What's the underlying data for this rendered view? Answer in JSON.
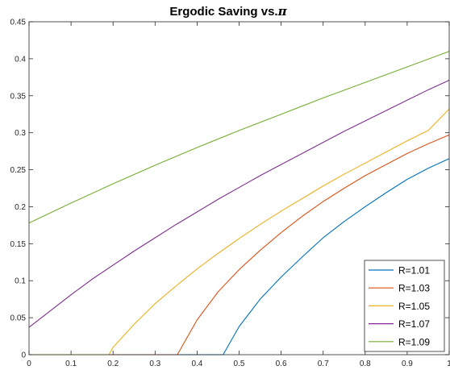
{
  "chart_data": {
    "type": "line",
    "title": "Ergodic Saving vs.",
    "title_symbol": "π",
    "xlabel": "",
    "ylabel": "",
    "xlim": [
      0,
      1
    ],
    "ylim": [
      0,
      0.45
    ],
    "x_ticks": [
      "0",
      "0.1",
      "0.2",
      "0.3",
      "0.4",
      "0.5",
      "0.6",
      "0.7",
      "0.8",
      "0.9",
      "1"
    ],
    "y_ticks": [
      "0",
      "0.05",
      "0.1",
      "0.15",
      "0.2",
      "0.25",
      "0.3",
      "0.35",
      "0.4",
      "0.45"
    ],
    "grid": false,
    "legend_position": "bottom-right",
    "x": [
      0,
      0.05,
      0.1,
      0.15,
      0.2,
      0.25,
      0.3,
      0.35,
      0.4,
      0.45,
      0.5,
      0.55,
      0.6,
      0.65,
      0.7,
      0.75,
      0.8,
      0.85,
      0.9,
      0.95,
      1
    ],
    "series": [
      {
        "name": "R=1.01",
        "color": "#0072BD",
        "x": [
          0,
          0.1,
          0.2,
          0.3,
          0.4,
          0.462,
          0.5,
          0.55,
          0.6,
          0.65,
          0.7,
          0.75,
          0.8,
          0.85,
          0.9,
          0.95,
          1
        ],
        "values": [
          0,
          0,
          0,
          0,
          0,
          0,
          0.038,
          0.075,
          0.105,
          0.132,
          0.158,
          0.18,
          0.2,
          0.219,
          0.237,
          0.252,
          0.265
        ]
      },
      {
        "name": "R=1.03",
        "color": "#D95319",
        "x": [
          0,
          0.1,
          0.2,
          0.3,
          0.353,
          0.4,
          0.45,
          0.5,
          0.55,
          0.6,
          0.65,
          0.7,
          0.75,
          0.8,
          0.85,
          0.9,
          0.95,
          1
        ],
        "values": [
          0,
          0,
          0,
          0,
          0,
          0.047,
          0.085,
          0.115,
          0.141,
          0.165,
          0.187,
          0.207,
          0.225,
          0.242,
          0.257,
          0.272,
          0.285,
          0.297
        ]
      },
      {
        "name": "R=1.05",
        "color": "#EDB120",
        "x": [
          0,
          0.1,
          0.19,
          0.2,
          0.25,
          0.3,
          0.35,
          0.4,
          0.45,
          0.5,
          0.55,
          0.6,
          0.65,
          0.7,
          0.75,
          0.8,
          0.85,
          0.9,
          0.95,
          1
        ],
        "values": [
          0,
          0,
          0,
          0.01,
          0.041,
          0.069,
          0.093,
          0.116,
          0.137,
          0.157,
          0.176,
          0.194,
          0.211,
          0.228,
          0.244,
          0.259,
          0.274,
          0.289,
          0.303,
          0.332
        ]
      },
      {
        "name": "R=1.07",
        "color": "#7E2F8E",
        "x": [
          0,
          0.05,
          0.1,
          0.15,
          0.2,
          0.25,
          0.3,
          0.35,
          0.4,
          0.45,
          0.5,
          0.55,
          0.6,
          0.65,
          0.7,
          0.75,
          0.8,
          0.85,
          0.9,
          0.95,
          1
        ],
        "values": [
          0.037,
          0.059,
          0.081,
          0.102,
          0.121,
          0.14,
          0.158,
          0.176,
          0.193,
          0.21,
          0.226,
          0.242,
          0.257,
          0.272,
          0.287,
          0.302,
          0.316,
          0.33,
          0.344,
          0.358,
          0.371
        ]
      },
      {
        "name": "R=1.09",
        "color": "#77AC30",
        "x": [
          0,
          0.1,
          0.2,
          0.3,
          0.4,
          0.5,
          0.6,
          0.7,
          0.8,
          0.9,
          1
        ],
        "values": [
          0.178,
          0.205,
          0.231,
          0.256,
          0.28,
          0.303,
          0.325,
          0.347,
          0.368,
          0.389,
          0.41
        ]
      }
    ]
  }
}
